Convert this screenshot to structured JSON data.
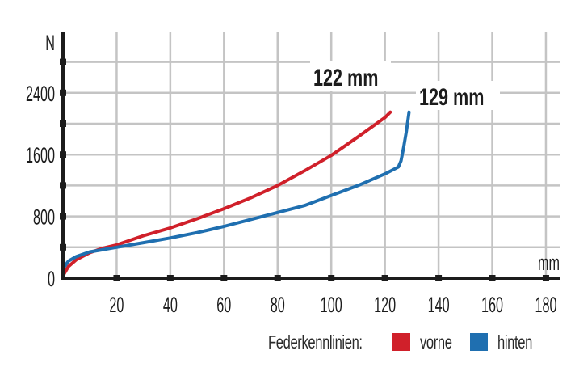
{
  "chart_data": {
    "type": "line",
    "title": "",
    "xlabel": "mm",
    "ylabel": "N",
    "xlim": [
      0,
      185
    ],
    "ylim": [
      0,
      3200
    ],
    "x_ticks": [
      20,
      40,
      60,
      80,
      100,
      120,
      140,
      160,
      180
    ],
    "y_ticks_labeled": [
      0,
      800,
      1600,
      2400
    ],
    "y_ticks_minor": [
      400,
      1200,
      2000,
      2800
    ],
    "grid": true,
    "legend": {
      "title": "Federkennlinien:",
      "position": "bottom-right",
      "entries": [
        {
          "label": "vorne",
          "color": "#d0202a"
        },
        {
          "label": "hinten",
          "color": "#1f6fb0"
        }
      ]
    },
    "annotations": [
      {
        "text": "122 mm",
        "series": "vorne"
      },
      {
        "text": "129 mm",
        "series": "hinten"
      }
    ],
    "series": [
      {
        "name": "vorne",
        "color": "#d0202a",
        "x": [
          0,
          2,
          5,
          10,
          15,
          20,
          30,
          40,
          50,
          60,
          70,
          80,
          90,
          100,
          110,
          120,
          122
        ],
        "y": [
          30,
          150,
          240,
          330,
          390,
          430,
          550,
          650,
          770,
          900,
          1040,
          1200,
          1390,
          1590,
          1830,
          2080,
          2150
        ]
      },
      {
        "name": "hinten",
        "color": "#1f6fb0",
        "x": [
          0,
          2,
          5,
          10,
          15,
          20,
          30,
          40,
          50,
          60,
          70,
          80,
          90,
          100,
          110,
          120,
          125,
          126,
          127,
          128,
          129
        ],
        "y": [
          120,
          220,
          280,
          340,
          370,
          400,
          460,
          520,
          590,
          670,
          760,
          850,
          940,
          1070,
          1200,
          1350,
          1440,
          1520,
          1700,
          1900,
          2150
        ]
      }
    ]
  },
  "axes": {
    "y_unit": "N",
    "x_unit": "mm"
  },
  "labels": {
    "y": [
      "0",
      "800",
      "1600",
      "2400"
    ],
    "x": [
      "20",
      "40",
      "60",
      "80",
      "100",
      "120",
      "140",
      "160",
      "180"
    ],
    "annot_vorne": "122 mm",
    "annot_hinten": "129 mm"
  },
  "legend": {
    "title": "Federkennlinien:",
    "vorne": "vorne",
    "hinten": "hinten",
    "vorne_color": "#d0202a",
    "hinten_color": "#1f6fb0"
  }
}
